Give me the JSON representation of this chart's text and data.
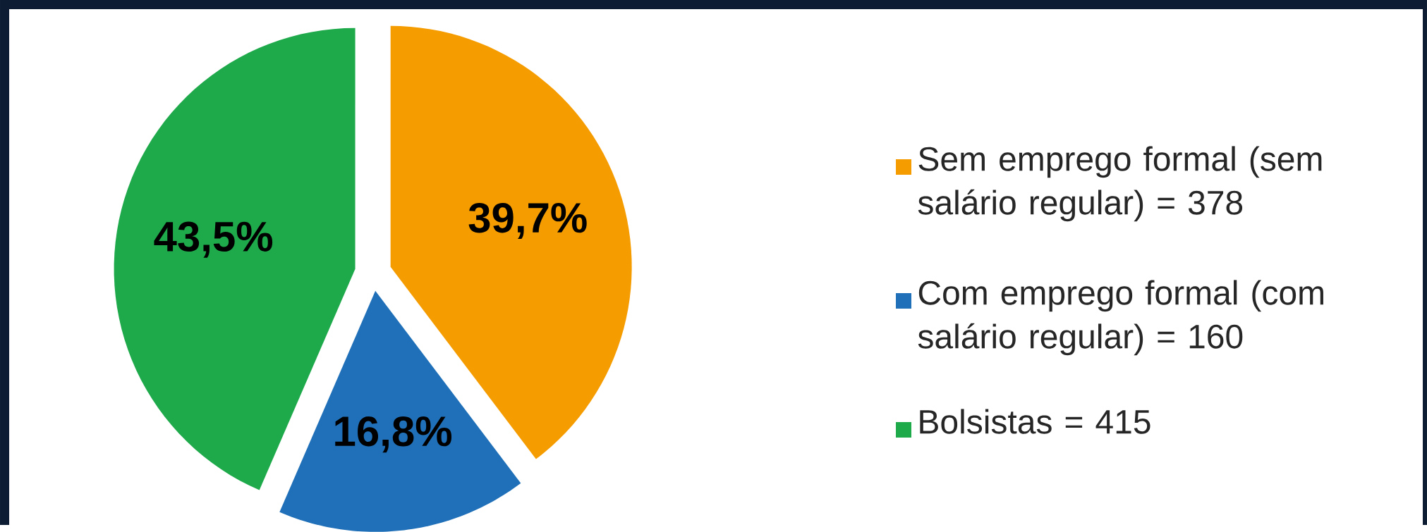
{
  "chart_data": {
    "type": "pie",
    "categories": [
      "Sem emprego formal (sem salário regular) = 378",
      "Com emprego formal (com salário regular) = 160",
      "Bolsistas = 415"
    ],
    "values": [
      39.7,
      16.8,
      43.5
    ],
    "colors": [
      "#f59c00",
      "#1f70b8",
      "#1eaa4b"
    ],
    "value_labels": [
      "39,7%",
      "16,8%",
      "43,5%"
    ],
    "legend": "right"
  }
}
